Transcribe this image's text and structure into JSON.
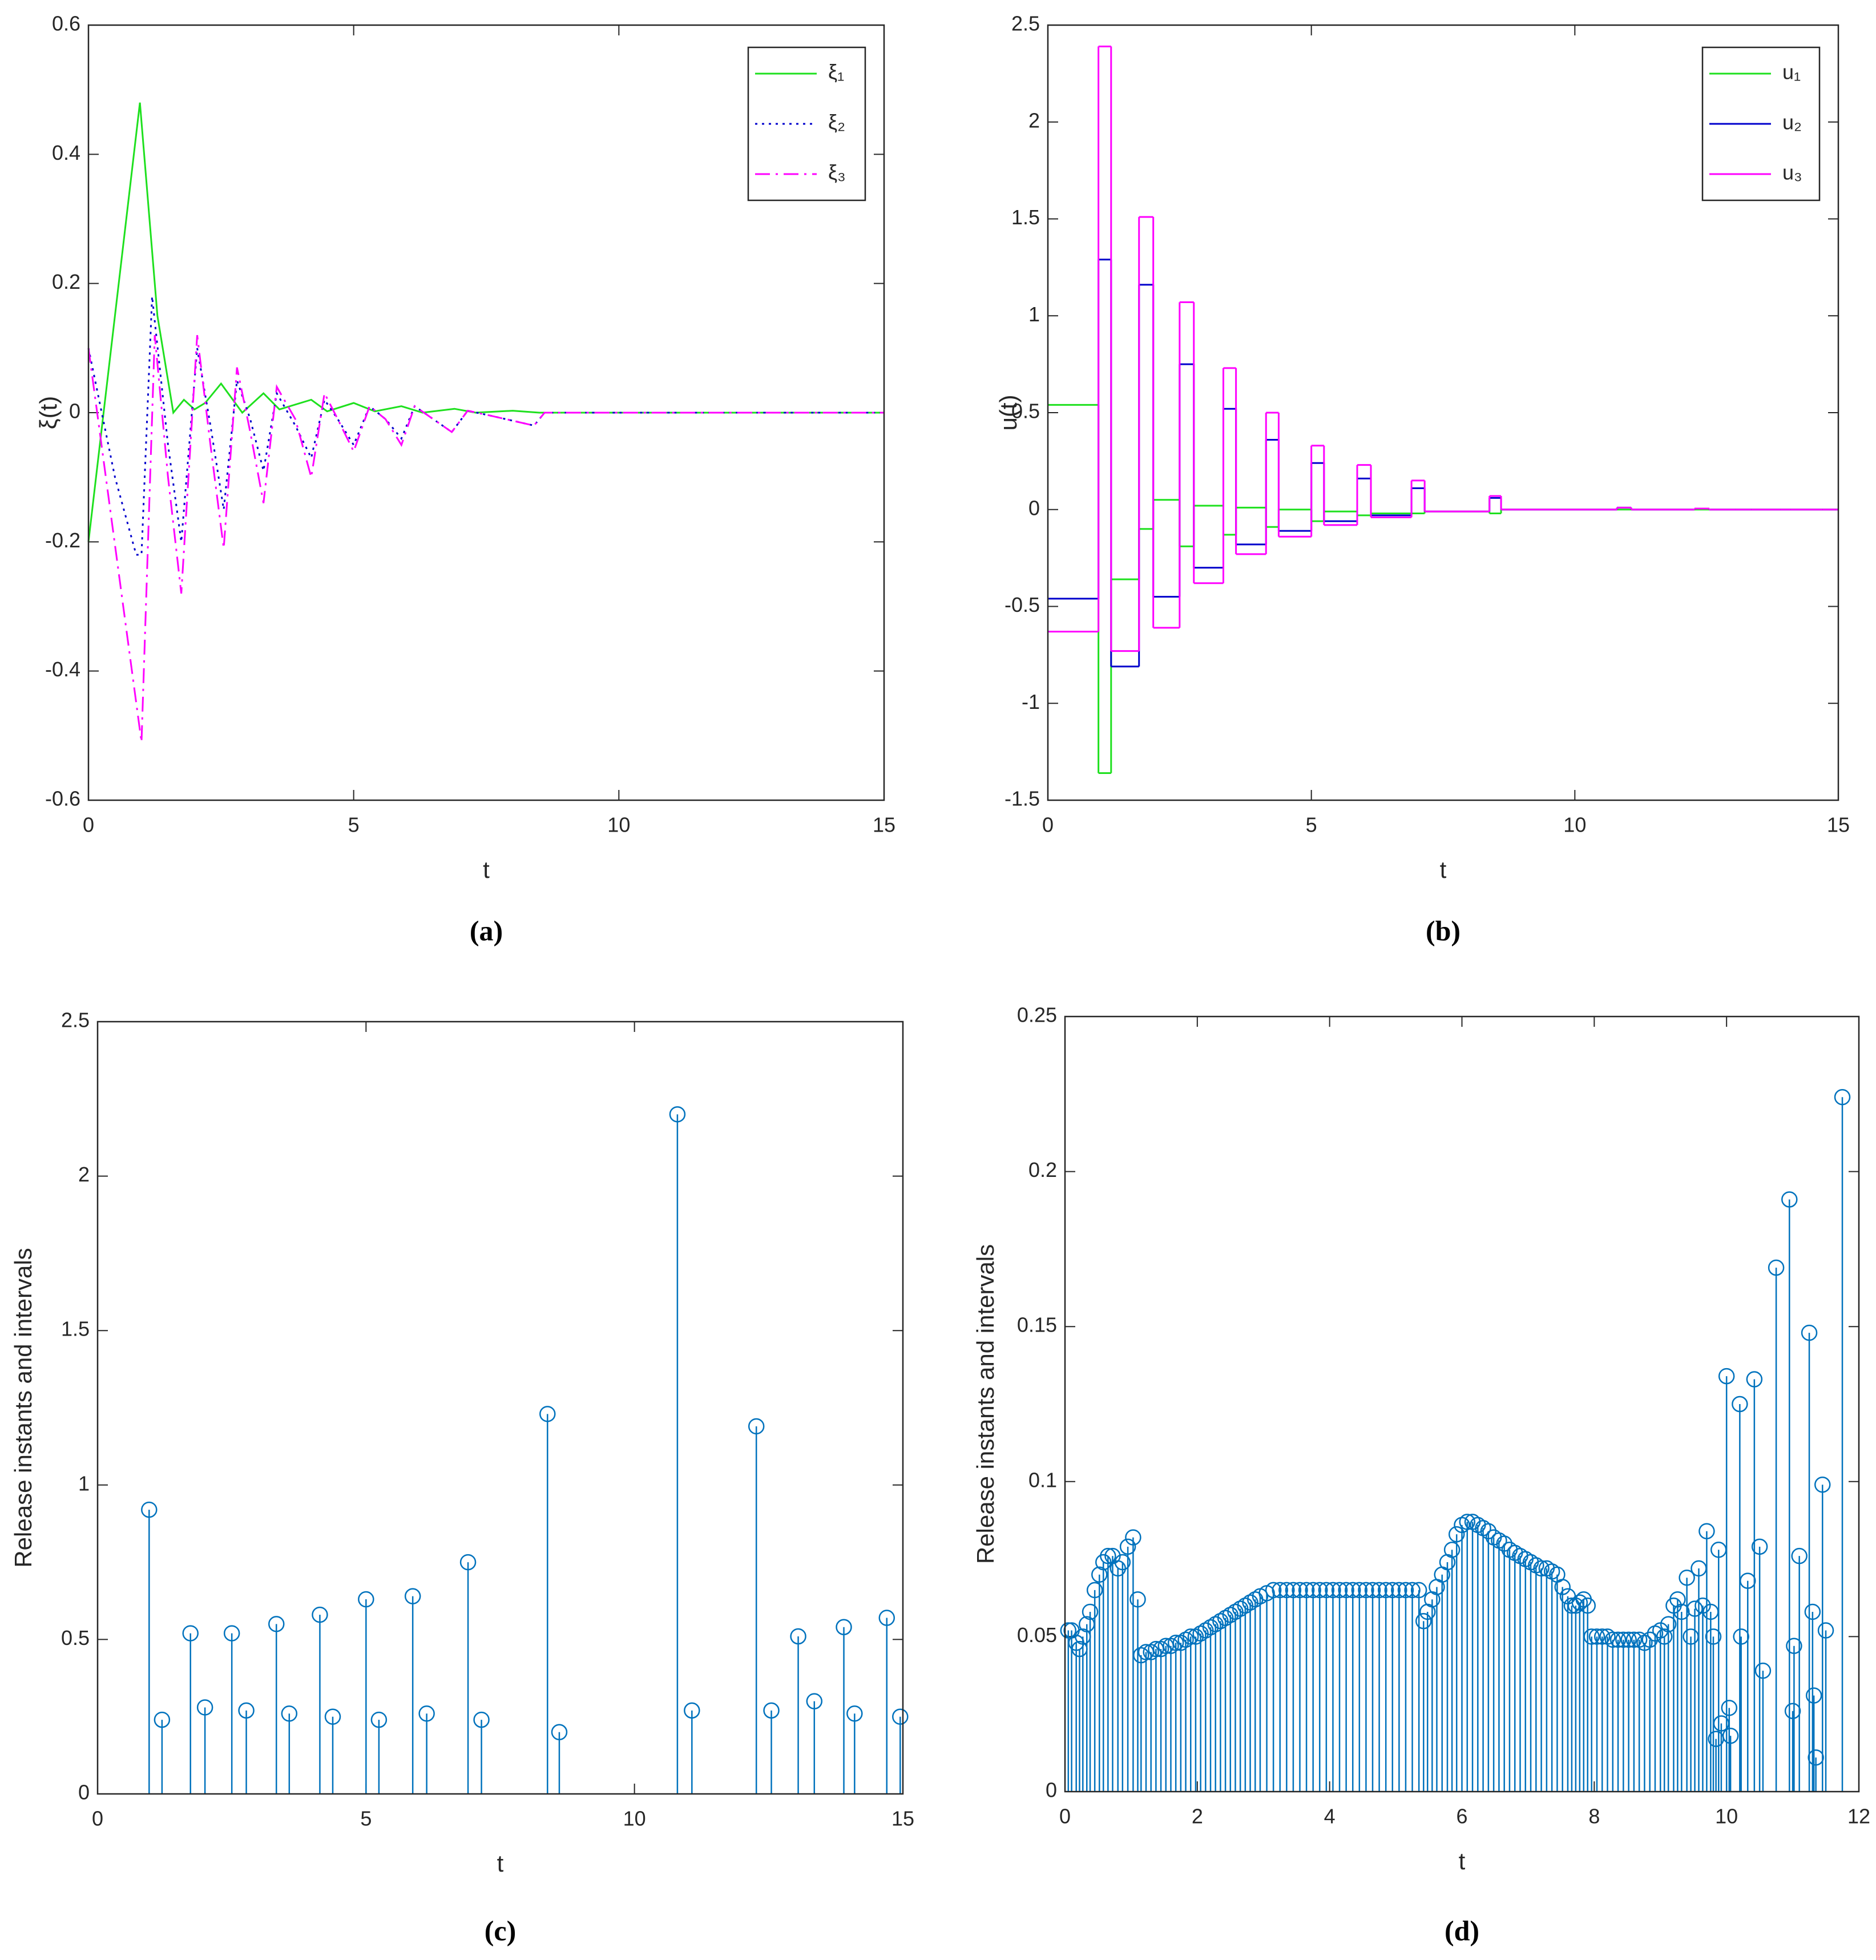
{
  "chart_data": [
    {
      "type": "line",
      "caption": "(a)",
      "xlabel": "t",
      "ylabel": "ξ(t)",
      "xlim": [
        0,
        15
      ],
      "xticks": [
        0,
        5,
        10,
        15
      ],
      "ylim": [
        -0.6,
        0.6
      ],
      "yticks": [
        -0.6,
        -0.4,
        -0.2,
        0,
        0.2,
        0.4,
        0.6
      ],
      "legend": "upper right",
      "series": [
        {
          "name": "ξ₁",
          "color": "#1ee01e",
          "line_style": "solid",
          "x": [
            0,
            0.97,
            1.3,
            1.6,
            1.8,
            2.0,
            2.2,
            2.5,
            2.9,
            3.3,
            3.6,
            4.2,
            4.5,
            5.0,
            5.4,
            5.9,
            6.3,
            6.9,
            7.3,
            8.0,
            8.5,
            15
          ],
          "values": [
            -0.2,
            0.48,
            0.15,
            0.0,
            0.02,
            0.005,
            0.015,
            0.045,
            0.0,
            0.03,
            0.005,
            0.02,
            0.002,
            0.015,
            0.002,
            0.01,
            0.0,
            0.006,
            0.0,
            0.003,
            0,
            0
          ]
        },
        {
          "name": "ξ₂",
          "color": "#0000cc",
          "line_style": "dotted",
          "x": [
            0,
            0.5,
            0.9,
            1.0,
            1.2,
            1.5,
            1.75,
            2.05,
            2.3,
            2.55,
            2.8,
            3.05,
            3.3,
            3.55,
            3.9,
            4.2,
            4.45,
            4.7,
            5.0,
            5.3,
            5.6,
            5.9,
            6.15,
            6.5,
            6.85,
            7.15,
            7.6,
            8.4,
            8.6,
            15
          ],
          "values": [
            0.1,
            -0.1,
            -0.22,
            -0.22,
            0.18,
            -0.05,
            -0.2,
            0.1,
            -0.02,
            -0.15,
            0.05,
            -0.01,
            -0.09,
            0.03,
            -0.02,
            -0.07,
            0.02,
            -0.01,
            -0.05,
            0.01,
            -0.01,
            -0.04,
            0.01,
            -0.01,
            -0.03,
            0.003,
            -0.005,
            -0.02,
            0,
            0
          ]
        },
        {
          "name": "ξ₃",
          "color": "#ff00ff",
          "line_style": "dashdot",
          "x": [
            0,
            1.0,
            1.25,
            1.5,
            1.75,
            2.05,
            2.3,
            2.55,
            2.8,
            3.05,
            3.3,
            3.55,
            3.9,
            4.2,
            4.45,
            4.7,
            5.0,
            5.3,
            5.6,
            5.9,
            6.15,
            6.5,
            6.85,
            7.15,
            7.6,
            8.4,
            8.6,
            15
          ],
          "values": [
            0.1,
            -0.51,
            0.12,
            -0.1,
            -0.28,
            0.12,
            -0.05,
            -0.21,
            0.07,
            -0.03,
            -0.14,
            0.04,
            -0.01,
            -0.1,
            0.03,
            -0.01,
            -0.06,
            0.01,
            -0.01,
            -0.05,
            0.01,
            -0.01,
            -0.03,
            0.003,
            -0.005,
            -0.02,
            0,
            0
          ]
        }
      ]
    },
    {
      "type": "stairs",
      "caption": "(b)",
      "xlabel": "t",
      "ylabel": "u(t)",
      "xlim": [
        0,
        15
      ],
      "xticks": [
        0,
        5,
        10,
        15
      ],
      "ylim": [
        -1.5,
        2.5
      ],
      "yticks": [
        -1.5,
        -1,
        -0.5,
        0,
        0.5,
        1,
        1.5,
        2,
        2.5
      ],
      "legend": "upper right",
      "x": [
        0,
        0.96,
        1.2,
        1.73,
        2.0,
        2.5,
        2.77,
        3.33,
        3.57,
        4.14,
        4.38,
        5.0,
        5.24,
        5.87,
        6.13,
        6.9,
        7.15,
        8.38,
        8.6,
        10.8,
        11.07,
        12.27,
        12.55,
        13.05,
        13.35,
        13.9,
        14.1,
        14.7,
        14.95
      ],
      "series": [
        {
          "name": "u₁",
          "color": "#1ee01e",
          "values": [
            0.54,
            -1.36,
            -0.36,
            -0.1,
            0.05,
            -0.19,
            0.02,
            -0.13,
            0.01,
            -0.09,
            0,
            -0.06,
            -0.01,
            -0.03,
            -0.02,
            -0.02,
            -0.01,
            -0.02,
            0,
            0,
            0,
            0,
            0,
            0,
            0,
            0,
            0,
            0,
            0
          ]
        },
        {
          "name": "u₂",
          "color": "#0000cc",
          "values": [
            -0.46,
            1.29,
            -0.81,
            1.16,
            -0.45,
            0.75,
            -0.3,
            0.52,
            -0.18,
            0.36,
            -0.11,
            0.24,
            -0.06,
            0.16,
            -0.03,
            0.11,
            -0.01,
            0.06,
            0,
            0.01,
            0,
            0.005,
            0,
            0,
            0,
            0,
            0,
            0,
            0
          ]
        },
        {
          "name": "u₃",
          "color": "#ff00ff",
          "values": [
            -0.63,
            2.39,
            -0.73,
            1.51,
            -0.61,
            1.07,
            -0.38,
            0.73,
            -0.23,
            0.5,
            -0.14,
            0.33,
            -0.08,
            0.23,
            -0.04,
            0.15,
            -0.01,
            0.07,
            0,
            0.01,
            0,
            0.005,
            0,
            0,
            0,
            0,
            0,
            0,
            0
          ]
        }
      ]
    },
    {
      "type": "stem",
      "caption": "(c)",
      "xlabel": "t",
      "ylabel": "Release instants and intervals",
      "color": "#0072bd",
      "xlim": [
        0,
        15
      ],
      "xticks": [
        0,
        5,
        10,
        15
      ],
      "ylim": [
        0,
        2.5
      ],
      "yticks": [
        0,
        0.5,
        1,
        1.5,
        2,
        2.5
      ],
      "x": [
        0.96,
        1.2,
        1.73,
        2.0,
        2.5,
        2.77,
        3.33,
        3.57,
        4.14,
        4.38,
        5.0,
        5.24,
        5.87,
        6.13,
        6.9,
        7.15,
        8.38,
        8.6,
        10.8,
        11.07,
        12.27,
        12.55,
        13.05,
        13.35,
        13.9,
        14.1,
        14.7,
        14.95
      ],
      "values": [
        0.92,
        0.24,
        0.52,
        0.28,
        0.52,
        0.27,
        0.55,
        0.26,
        0.58,
        0.25,
        0.63,
        0.24,
        0.64,
        0.26,
        0.75,
        0.24,
        1.23,
        0.2,
        2.2,
        0.27,
        1.19,
        0.27,
        0.51,
        0.3,
        0.54,
        0.26,
        0.57,
        0.25
      ]
    },
    {
      "type": "stem",
      "caption": "(d)",
      "xlabel": "t",
      "ylabel": "Release instants and intervals",
      "color": "#0072bd",
      "xlim": [
        0,
        12
      ],
      "xticks": [
        0,
        2,
        4,
        6,
        8,
        10,
        12
      ],
      "ylim": [
        0,
        0.25
      ],
      "yticks": [
        0,
        0.05,
        0.1,
        0.15,
        0.2,
        0.25
      ],
      "x": [
        0.05,
        0.1,
        0.17,
        0.22,
        0.27,
        0.33,
        0.38,
        0.45,
        0.52,
        0.58,
        0.65,
        0.72,
        0.8,
        0.87,
        0.95,
        1.03,
        1.1,
        1.15,
        1.225,
        1.3,
        1.375,
        1.45,
        1.525,
        1.6,
        1.675,
        1.75,
        1.825,
        1.9,
        1.975,
        2.05,
        2.125,
        2.2,
        2.275,
        2.35,
        2.425,
        2.5,
        2.575,
        2.65,
        2.725,
        2.8,
        2.875,
        2.95,
        3.05,
        3.15,
        3.25,
        3.35,
        3.45,
        3.55,
        3.65,
        3.75,
        3.85,
        3.95,
        4.05,
        4.15,
        4.25,
        4.35,
        4.45,
        4.55,
        4.65,
        4.75,
        4.85,
        4.95,
        5.05,
        5.15,
        5.25,
        5.35,
        5.42,
        5.48,
        5.55,
        5.62,
        5.7,
        5.78,
        5.85,
        5.92,
        6.0,
        6.08,
        6.16,
        6.24,
        6.32,
        6.4,
        6.48,
        6.56,
        6.64,
        6.72,
        6.8,
        6.88,
        6.96,
        7.04,
        7.12,
        7.2,
        7.28,
        7.36,
        7.44,
        7.52,
        7.6,
        7.66,
        7.72,
        7.78,
        7.84,
        7.9,
        7.96,
        8.04,
        8.12,
        8.2,
        8.28,
        8.36,
        8.44,
        8.52,
        8.6,
        8.68,
        8.76,
        8.84,
        8.92,
        9.0,
        9.06,
        9.12,
        9.2,
        9.26,
        9.32,
        9.4,
        9.46,
        9.52,
        9.58,
        9.64,
        9.7,
        9.76,
        9.8,
        9.84,
        9.88,
        9.92,
        10.0,
        10.04,
        10.06,
        10.2,
        10.22,
        10.32,
        10.42,
        10.5,
        10.55,
        10.75,
        10.95,
        11.0,
        11.02,
        11.1,
        11.25,
        11.3,
        11.32,
        11.35,
        11.45,
        11.5,
        11.75
      ],
      "values": [
        0.052,
        0.052,
        0.048,
        0.046,
        0.05,
        0.054,
        0.058,
        0.065,
        0.07,
        0.074,
        0.076,
        0.076,
        0.072,
        0.074,
        0.079,
        0.082,
        0.062,
        0.044,
        0.045,
        0.045,
        0.046,
        0.046,
        0.047,
        0.047,
        0.048,
        0.048,
        0.049,
        0.05,
        0.05,
        0.051,
        0.052,
        0.053,
        0.054,
        0.055,
        0.056,
        0.057,
        0.058,
        0.059,
        0.06,
        0.061,
        0.062,
        0.063,
        0.064,
        0.065,
        0.065,
        0.065,
        0.065,
        0.065,
        0.065,
        0.065,
        0.065,
        0.065,
        0.065,
        0.065,
        0.065,
        0.065,
        0.065,
        0.065,
        0.065,
        0.065,
        0.065,
        0.065,
        0.065,
        0.065,
        0.065,
        0.065,
        0.055,
        0.058,
        0.062,
        0.066,
        0.07,
        0.074,
        0.078,
        0.083,
        0.086,
        0.087,
        0.087,
        0.086,
        0.085,
        0.084,
        0.082,
        0.081,
        0.08,
        0.078,
        0.077,
        0.076,
        0.075,
        0.074,
        0.073,
        0.072,
        0.072,
        0.071,
        0.07,
        0.066,
        0.063,
        0.06,
        0.06,
        0.061,
        0.062,
        0.06,
        0.05,
        0.05,
        0.05,
        0.05,
        0.049,
        0.049,
        0.049,
        0.049,
        0.049,
        0.049,
        0.048,
        0.049,
        0.051,
        0.052,
        0.05,
        0.054,
        0.06,
        0.062,
        0.058,
        0.069,
        0.05,
        0.059,
        0.072,
        0.06,
        0.084,
        0.058,
        0.05,
        0.017,
        0.078,
        0.022,
        0.134,
        0.027,
        0.018,
        0.125,
        0.05,
        0.068,
        0.133,
        0.079,
        0.039,
        0.169,
        0.191,
        0.026,
        0.047,
        0.076,
        0.148,
        0.058,
        0.031,
        0.011,
        0.099,
        0.052,
        0.224
      ]
    }
  ]
}
